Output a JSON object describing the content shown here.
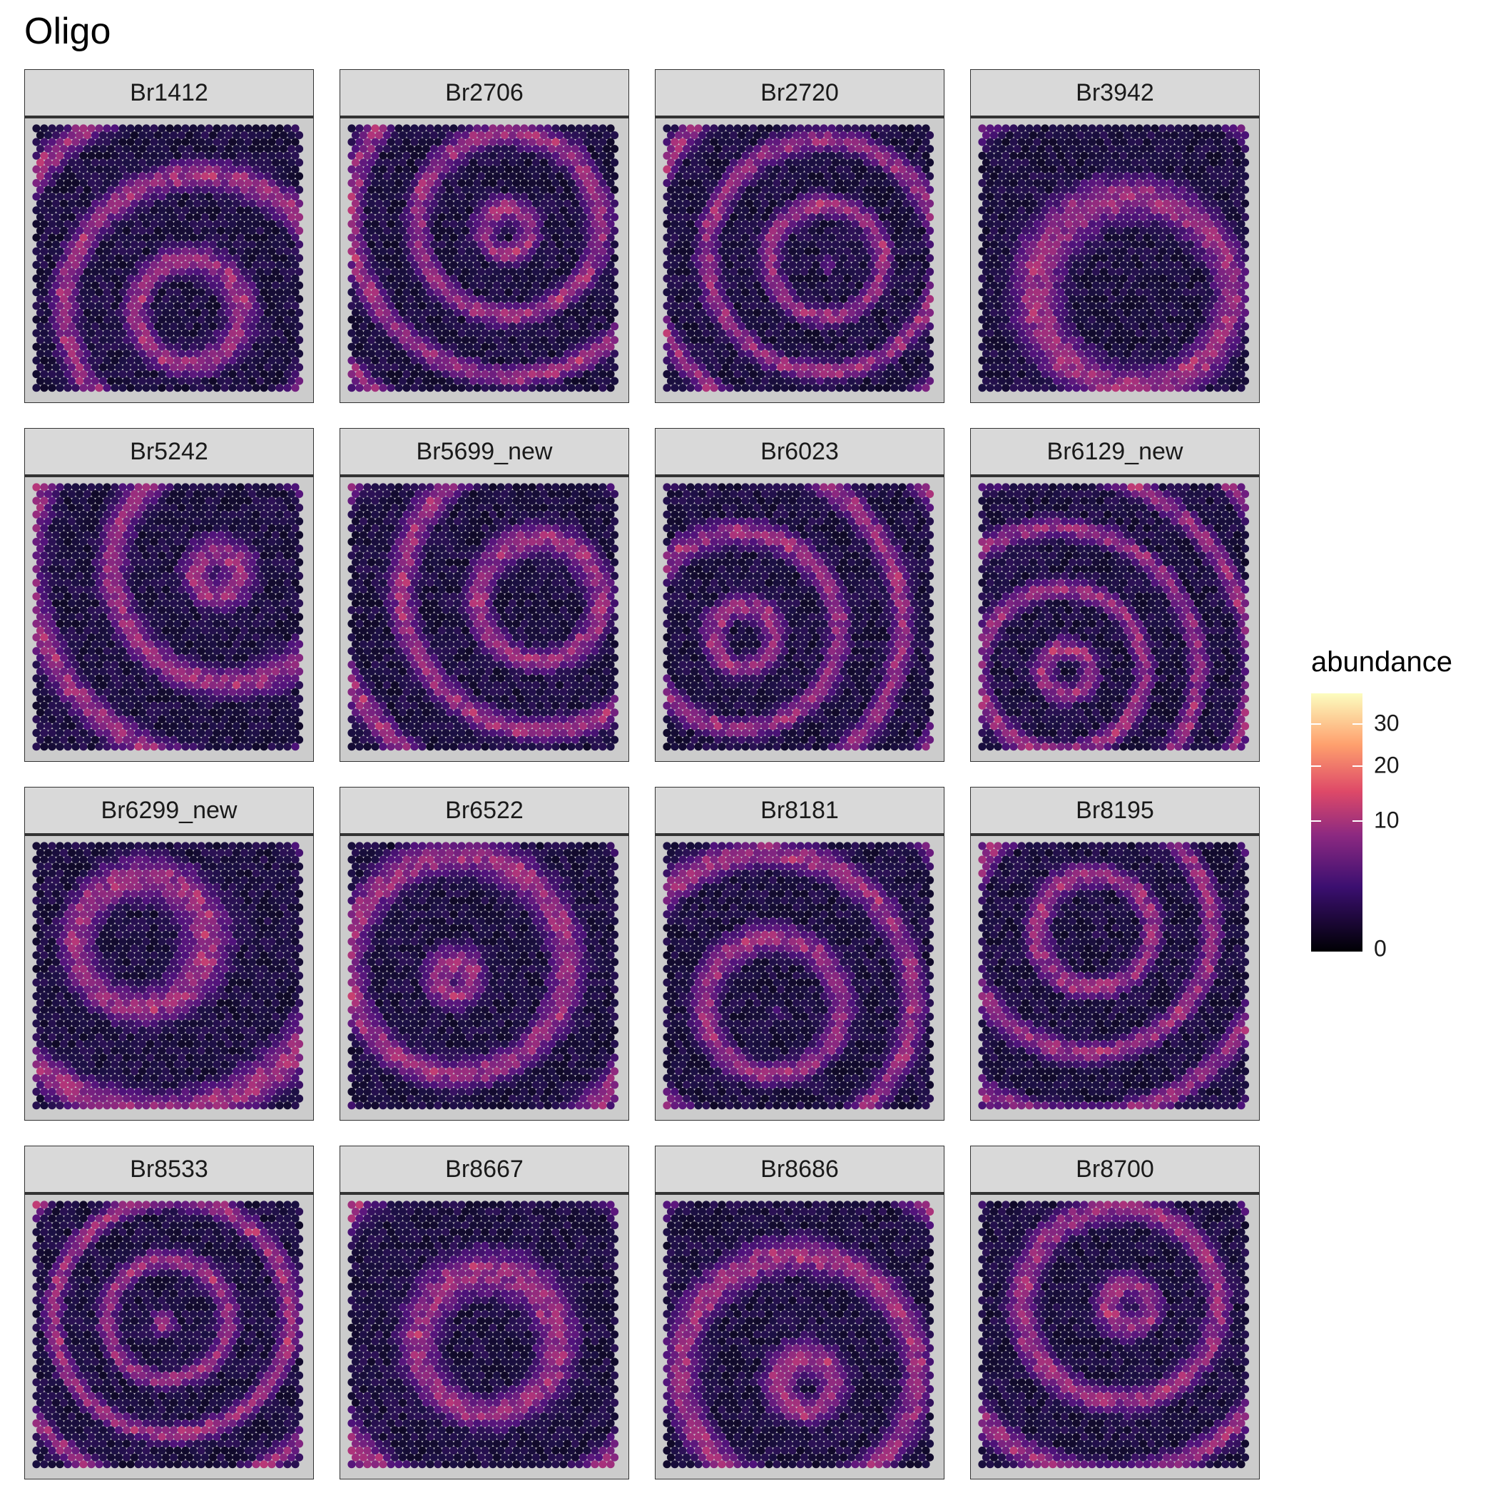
{
  "title": "Oligo",
  "chart_data": {
    "type": "heatmap",
    "title": "Oligo",
    "facets": [
      "Br1412",
      "Br2706",
      "Br2720",
      "Br3942",
      "Br5242",
      "Br5699_new",
      "Br6023",
      "Br6129_new",
      "Br6299_new",
      "Br6522",
      "Br8181",
      "Br8195",
      "Br8533",
      "Br8667",
      "Br8686",
      "Br8700"
    ],
    "legend": {
      "title": "abundance",
      "ticks": [
        "0",
        "10",
        "20",
        "30"
      ],
      "tick_values": [
        0,
        10,
        20,
        30
      ],
      "range": [
        0,
        36
      ],
      "scale": "sqrt",
      "palette": "magma",
      "position": "right"
    }
  },
  "colors": {
    "panel_bg": "#cccccc",
    "strip_bg": "#d9d9d9"
  }
}
